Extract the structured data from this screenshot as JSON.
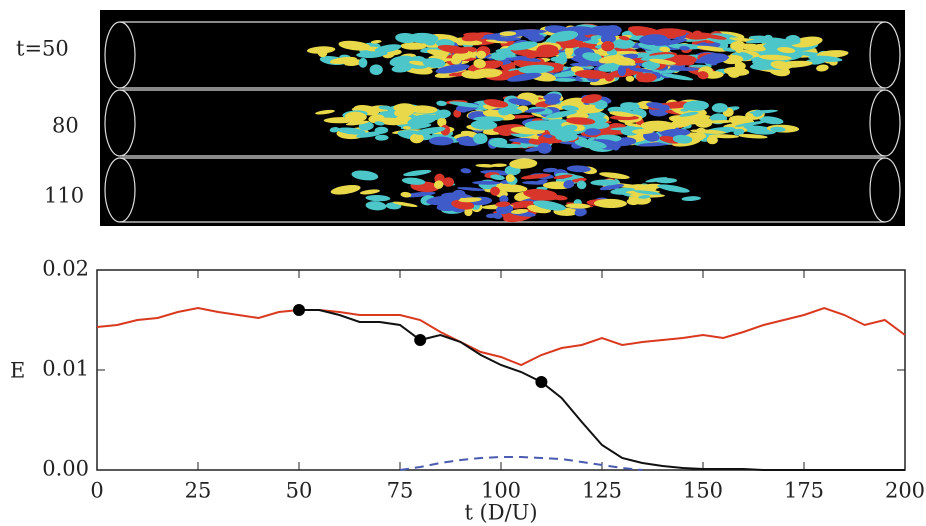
{
  "chart_data": {
    "type": "line",
    "panel_labels": [
      "t=50",
      "80",
      "110"
    ],
    "xlabel": "t (D/U)",
    "ylabel": "E",
    "xlim": [
      0,
      200
    ],
    "xticks": [
      0,
      25,
      50,
      75,
      100,
      125,
      150,
      175,
      200
    ],
    "ylim": [
      0,
      0.02
    ],
    "yticks": [
      {
        "value": 0,
        "label": "0.00"
      },
      0.01,
      0.02
    ],
    "x": [
      0,
      5,
      10,
      15,
      20,
      25,
      30,
      35,
      40,
      45,
      50,
      55,
      60,
      65,
      70,
      75,
      80,
      85,
      90,
      95,
      100,
      105,
      110,
      115,
      120,
      125,
      130,
      135,
      140,
      145,
      150,
      155,
      160,
      165,
      170,
      175,
      180,
      185,
      190,
      195,
      200
    ],
    "series": [
      {
        "color": "#d9391e",
        "dash": false,
        "values": [
          0.0143,
          0.0145,
          0.015,
          0.0152,
          0.0158,
          0.0162,
          0.0158,
          0.0155,
          0.0152,
          0.0158,
          0.016,
          0.016,
          0.0158,
          0.0155,
          0.0155,
          0.0155,
          0.015,
          0.0138,
          0.0128,
          0.0118,
          0.0113,
          0.0105,
          0.0115,
          0.0122,
          0.0125,
          0.0132,
          0.0125,
          0.0128,
          0.013,
          0.0132,
          0.0135,
          0.0132,
          0.0138,
          0.0145,
          0.015,
          0.0155,
          0.0162,
          0.0155,
          0.0145,
          0.015,
          0.0135
        ]
      },
      {
        "color": "#111111",
        "dash": false,
        "values": [
          null,
          null,
          null,
          null,
          null,
          null,
          null,
          null,
          null,
          null,
          0.016,
          0.016,
          0.0155,
          0.0148,
          0.0148,
          0.0145,
          0.013,
          0.0135,
          0.0128,
          0.0115,
          0.0105,
          0.0098,
          0.0088,
          0.0072,
          0.0048,
          0.0025,
          0.0012,
          0.0007,
          0.0004,
          0.0002,
          0.0001,
          0.0001,
          0.0001,
          0,
          0,
          0,
          0,
          0,
          0,
          0,
          0
        ]
      },
      {
        "color": "#4a5bb0",
        "dash": true,
        "values": [
          null,
          null,
          null,
          null,
          null,
          null,
          null,
          null,
          null,
          null,
          null,
          null,
          null,
          null,
          null,
          0,
          0.0003,
          0.0007,
          0.001,
          0.0012,
          0.0013,
          0.0013,
          0.0012,
          0.0011,
          0.0008,
          0.0005,
          0.0002,
          0,
          null,
          null,
          null,
          null,
          null,
          null,
          null,
          null,
          null,
          null,
          null,
          null,
          null
        ]
      }
    ],
    "markers": {
      "color": "#000000",
      "x": [
        50,
        80,
        110
      ],
      "values": [
        0.016,
        0.013,
        0.0088
      ]
    }
  }
}
